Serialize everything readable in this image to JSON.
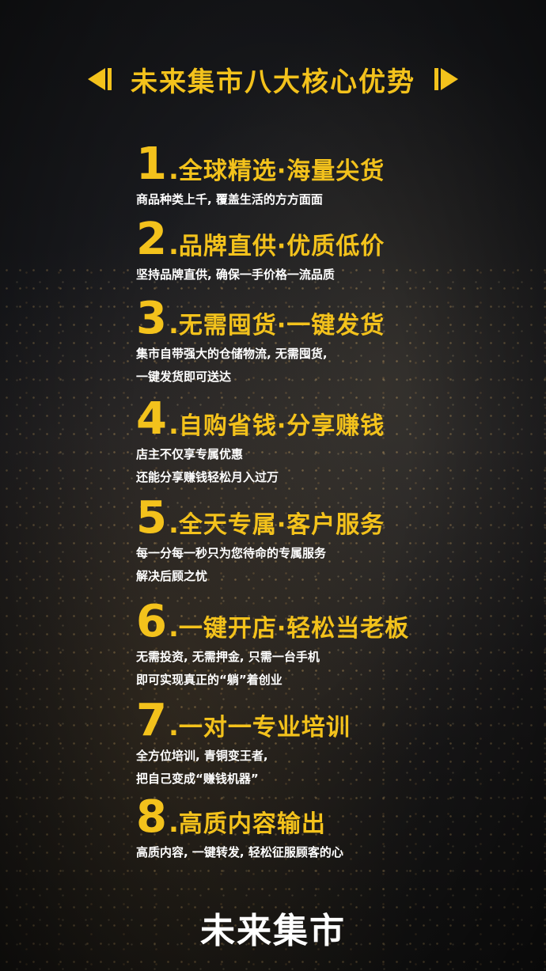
{
  "header": {
    "title": "未来集市八大核心优势"
  },
  "items": [
    {
      "num": "1",
      "title": "全球精选·海量尖货",
      "lines": [
        "商品种类上千, 覆盖生活的方方面面"
      ]
    },
    {
      "num": "2",
      "title": "品牌直供·优质低价",
      "lines": [
        "坚持品牌直供, 确保一手价格一流品质"
      ]
    },
    {
      "num": "3",
      "title": "无需囤货·一键发货",
      "lines": [
        "集市自带强大的仓储物流, 无需囤货,",
        "一键发货即可送达"
      ]
    },
    {
      "num": "4",
      "title": "自购省钱·分享赚钱",
      "lines": [
        "店主不仅享专属优惠",
        "还能分享赚钱轻松月入过万"
      ]
    },
    {
      "num": "5",
      "title": "全天专属·客户服务",
      "lines": [
        "每一分每一秒只为您待命的专属服务",
        "解决后顾之忧"
      ]
    },
    {
      "num": "6",
      "title": "一键开店·轻松当老板",
      "lines": [
        "无需投资, 无需押金, 只需一台手机",
        "即可实现真正的“躺”着创业"
      ]
    },
    {
      "num": "7",
      "title": "一对一专业培训",
      "lines": [
        "全方位培训, 青铜变王者,",
        "把自己变成“赚钱机器”"
      ]
    },
    {
      "num": "8",
      "title": "高质内容输出",
      "lines": [
        "高质内容, 一键转发, 轻松征服顾客的心"
      ]
    }
  ],
  "brand": {
    "name": "未来集市"
  }
}
